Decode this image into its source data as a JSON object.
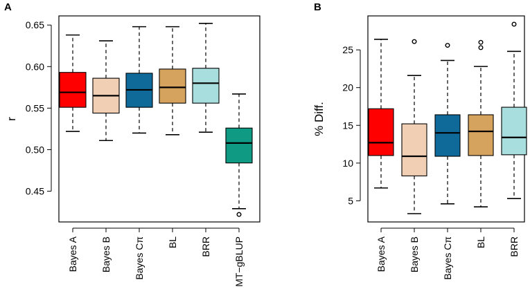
{
  "chart_data": [
    {
      "type": "box",
      "panel_label": "A",
      "title": "",
      "xlabel": "",
      "ylabel": "r",
      "ylim": [
        0.413,
        0.661
      ],
      "yticks": [
        0.45,
        0.5,
        0.55,
        0.6,
        0.65
      ],
      "ytick_labels": [
        "0.45",
        "0.50",
        "0.55",
        "0.60",
        "0.65"
      ],
      "grid": false,
      "categories": [
        "Bayes A",
        "Bayes B",
        "Bayes Cπ",
        "BL",
        "BRR",
        "MT−gBLUP"
      ],
      "series": [
        {
          "name": "Bayes A",
          "color": "#ff0000",
          "min": 0.522,
          "q1": 0.551,
          "median": 0.569,
          "q3": 0.593,
          "max": 0.638,
          "outliers": []
        },
        {
          "name": "Bayes B",
          "color": "#f0cfb4",
          "min": 0.511,
          "q1": 0.544,
          "median": 0.565,
          "q3": 0.586,
          "max": 0.631,
          "outliers": []
        },
        {
          "name": "Bayes Cπ",
          "color": "#0f6a9a",
          "min": 0.52,
          "q1": 0.551,
          "median": 0.572,
          "q3": 0.592,
          "max": 0.648,
          "outliers": []
        },
        {
          "name": "BL",
          "color": "#d6a35e",
          "min": 0.518,
          "q1": 0.556,
          "median": 0.575,
          "q3": 0.597,
          "max": 0.648,
          "outliers": []
        },
        {
          "name": "BRR",
          "color": "#a9dede",
          "min": 0.521,
          "q1": 0.556,
          "median": 0.58,
          "q3": 0.598,
          "max": 0.652,
          "outliers": []
        },
        {
          "name": "MT−gBLUP",
          "color": "#0f9a83",
          "min": 0.429,
          "q1": 0.484,
          "median": 0.508,
          "q3": 0.526,
          "max": 0.567,
          "outliers": [
            0.422
          ]
        }
      ]
    },
    {
      "type": "box",
      "panel_label": "B",
      "title": "",
      "xlabel": "",
      "ylabel": "% Diff.",
      "ylim": [
        2.2,
        29.5
      ],
      "yticks": [
        5,
        10,
        15,
        20,
        25
      ],
      "ytick_labels": [
        "5",
        "10",
        "15",
        "20",
        "25"
      ],
      "grid": false,
      "categories": [
        "Bayes A",
        "Bayes B",
        "Bayes Cπ",
        "BL",
        "BRR"
      ],
      "series": [
        {
          "name": "Bayes A",
          "color": "#ff0000",
          "min": 6.7,
          "q1": 11.0,
          "median": 12.7,
          "q3": 17.2,
          "max": 26.4,
          "outliers": []
        },
        {
          "name": "Bayes B",
          "color": "#f0cfb4",
          "min": 3.3,
          "q1": 8.3,
          "median": 10.9,
          "q3": 15.2,
          "max": 21.6,
          "outliers": [
            26.1
          ]
        },
        {
          "name": "Bayes Cπ",
          "color": "#0f6a9a",
          "min": 4.6,
          "q1": 10.9,
          "median": 14.0,
          "q3": 16.4,
          "max": 23.6,
          "outliers": [
            25.6
          ]
        },
        {
          "name": "BL",
          "color": "#d6a35e",
          "min": 4.2,
          "q1": 11.0,
          "median": 14.2,
          "q3": 16.4,
          "max": 22.8,
          "outliers": [
            25.3,
            26.0
          ]
        },
        {
          "name": "BRR",
          "color": "#a9dede",
          "min": 5.3,
          "q1": 11.1,
          "median": 13.4,
          "q3": 17.4,
          "max": 24.8,
          "outliers": [
            28.4
          ]
        }
      ]
    }
  ]
}
